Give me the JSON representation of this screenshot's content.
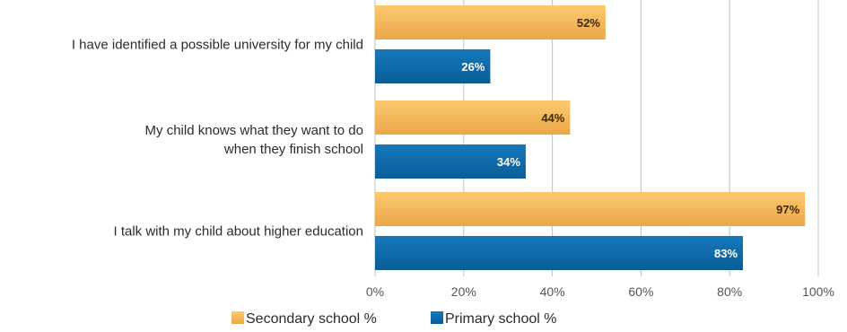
{
  "chart_data": {
    "type": "bar",
    "orientation": "horizontal",
    "categories": [
      [
        "I have identified a possible university for my child"
      ],
      [
        "My child knows what they want to do",
        "when they finish school"
      ],
      [
        "I talk with my child about higher education"
      ]
    ],
    "series": [
      {
        "name": "Secondary school %",
        "values": [
          52,
          44,
          97
        ],
        "color": "#f5b556"
      },
      {
        "name": "Primary school %",
        "values": [
          26,
          34,
          83
        ],
        "color": "#0f6aa8"
      }
    ],
    "value_labels": {
      "Secondary school %": [
        "52%",
        "44%",
        "97%"
      ],
      "Primary school %": [
        "26%",
        "34%",
        "83%"
      ]
    },
    "xticks": [
      "0%",
      "20%",
      "40%",
      "60%",
      "80%",
      "100%"
    ],
    "xlim": [
      0,
      100
    ],
    "grid": true,
    "legend": "bottom"
  }
}
